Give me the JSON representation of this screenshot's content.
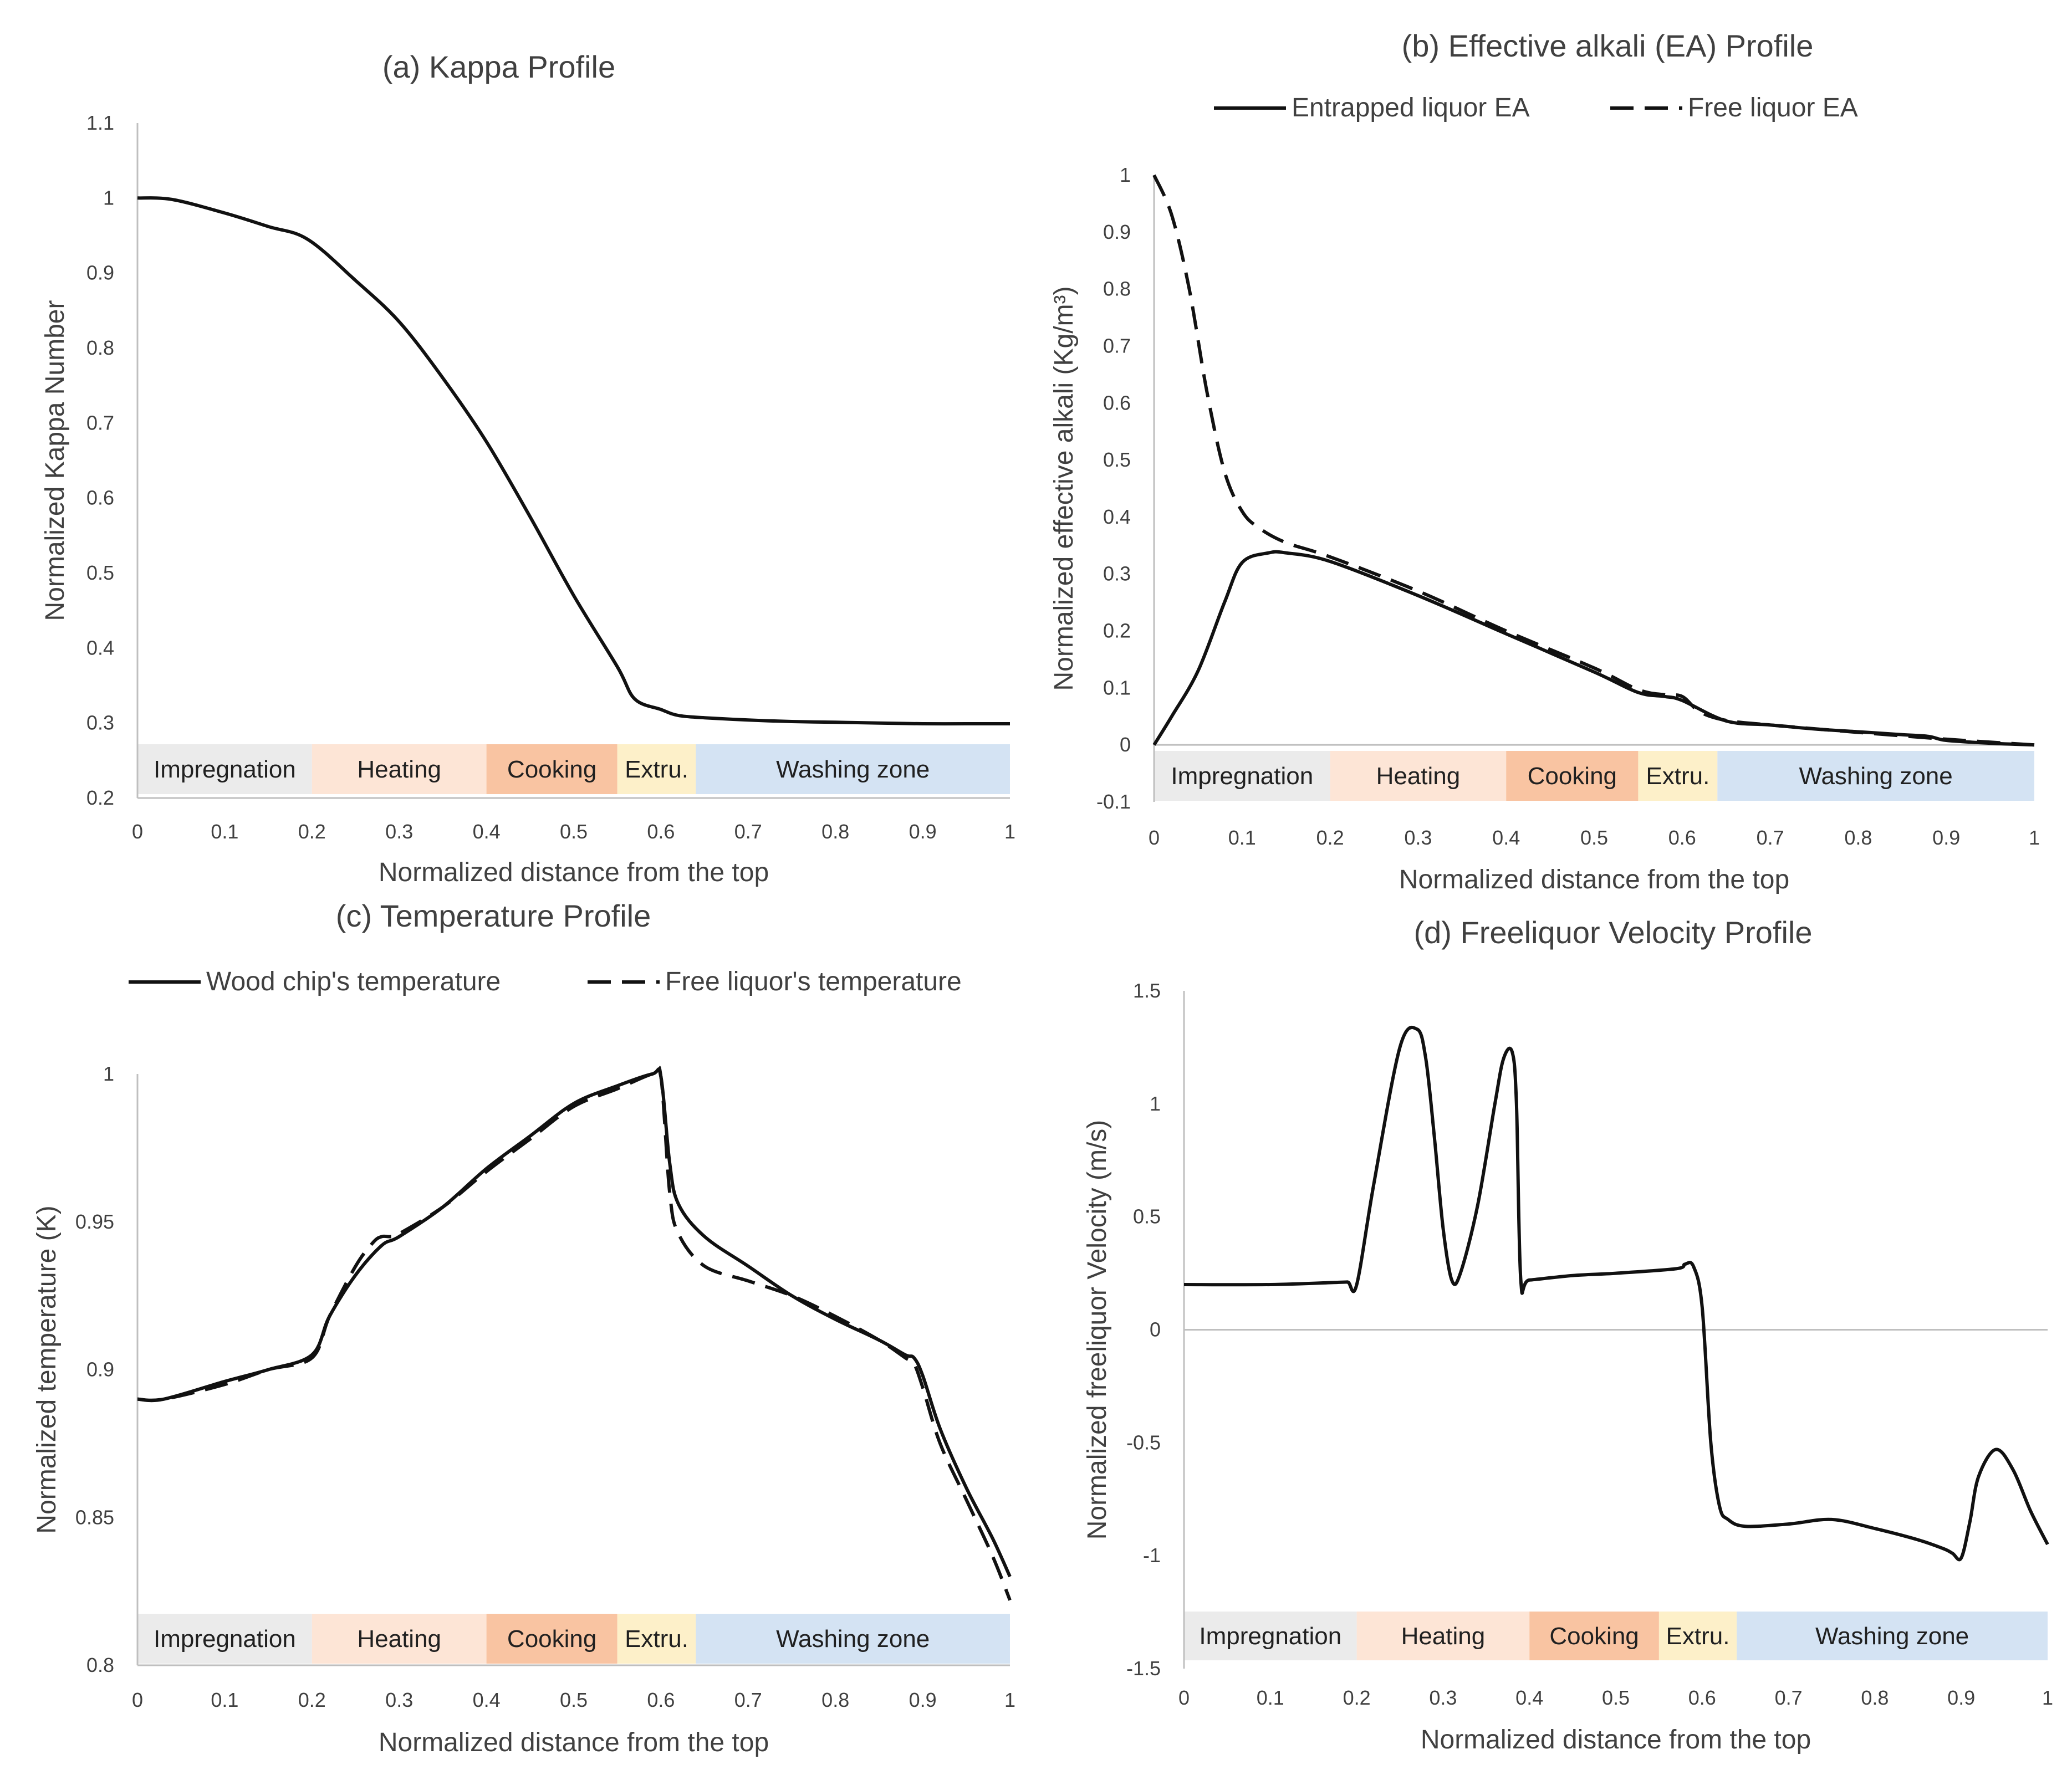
{
  "chart_data": [
    {
      "id": "a",
      "type": "line",
      "title": "(a) Kappa Profile",
      "xlabel": "Normalized distance from the top",
      "ylabel": "Normalized Kappa Number",
      "xlim": [
        0,
        1
      ],
      "ylim": [
        0.2,
        1.1
      ],
      "xticks": [
        "0",
        "0.1",
        "0.2",
        "0.3",
        "0.4",
        "0.5",
        "0.6",
        "0.7",
        "0.8",
        "0.9",
        "1"
      ],
      "yticks": [
        "0.2",
        "0.3",
        "0.4",
        "0.5",
        "0.6",
        "0.7",
        "0.8",
        "0.9",
        "1",
        "1.1"
      ],
      "legend": [],
      "series": [
        {
          "name": "Kappa",
          "style": "solid",
          "x": [
            0,
            0.04,
            0.1,
            0.15,
            0.195,
            0.25,
            0.3,
            0.35,
            0.4,
            0.45,
            0.5,
            0.55,
            0.57,
            0.6,
            0.62,
            0.65,
            0.7,
            0.75,
            0.8,
            0.85,
            0.9,
            0.95,
            1
          ],
          "y": [
            1,
            0.998,
            0.98,
            0.962,
            0.945,
            0.89,
            0.835,
            0.76,
            0.675,
            0.575,
            0.47,
            0.375,
            0.332,
            0.318,
            0.31,
            0.307,
            0.304,
            0.302,
            0.301,
            0.3,
            0.299,
            0.299,
            0.299
          ]
        }
      ],
      "zones": [
        {
          "label": "Impregnation",
          "from": 0,
          "to": 0.2,
          "color": "#ebebeb"
        },
        {
          "label": "Heating",
          "from": 0.2,
          "to": 0.4,
          "color": "#fde5d6"
        },
        {
          "label": "Cooking",
          "from": 0.4,
          "to": 0.55,
          "color": "#f9c4a2"
        },
        {
          "label": "Extru.",
          "from": 0.55,
          "to": 0.64,
          "color": "#fdf0c9"
        },
        {
          "label": "Washing zone",
          "from": 0.64,
          "to": 1,
          "color": "#d4e3f3"
        }
      ]
    },
    {
      "id": "b",
      "type": "line",
      "title": "Effective alkali (EA) Profile",
      "title_prefix": "(b)",
      "xlabel": "Normalized distance from the top",
      "ylabel": "Normalized effective alkali (Kg/m³)",
      "xlim": [
        0,
        1
      ],
      "ylim": [
        -0.1,
        1
      ],
      "xticks": [
        "0",
        "0.1",
        "0.2",
        "0.3",
        "0.4",
        "0.5",
        "0.6",
        "0.7",
        "0.8",
        "0.9",
        "1"
      ],
      "yticks": [
        "-0.1",
        "0",
        "0.1",
        "0.2",
        "0.3",
        "0.4",
        "0.5",
        "0.6",
        "0.7",
        "0.8",
        "0.9",
        "1"
      ],
      "legend": [
        "Entrapped liquor EA",
        "Free liquor EA"
      ],
      "series": [
        {
          "name": "Entrapped liquor EA",
          "style": "solid",
          "x": [
            0,
            0.02,
            0.05,
            0.08,
            0.1,
            0.13,
            0.15,
            0.2,
            0.3,
            0.4,
            0.5,
            0.55,
            0.58,
            0.6,
            0.65,
            0.7,
            0.75,
            0.8,
            0.85,
            0.88,
            0.9,
            0.95,
            1
          ],
          "y": [
            0,
            0.05,
            0.13,
            0.25,
            0.32,
            0.337,
            0.337,
            0.322,
            0.262,
            0.195,
            0.128,
            0.092,
            0.085,
            0.078,
            0.042,
            0.035,
            0.028,
            0.023,
            0.018,
            0.015,
            0.008,
            0.003,
            0
          ]
        },
        {
          "name": "Free liquor EA",
          "style": "dashed",
          "x": [
            0,
            0.02,
            0.04,
            0.06,
            0.08,
            0.1,
            0.12,
            0.15,
            0.2,
            0.3,
            0.4,
            0.5,
            0.55,
            0.58,
            0.6,
            0.62,
            0.65,
            0.7,
            0.8,
            0.9,
            1
          ],
          "y": [
            1,
            0.93,
            0.8,
            0.62,
            0.48,
            0.41,
            0.38,
            0.355,
            0.33,
            0.27,
            0.2,
            0.135,
            0.097,
            0.088,
            0.085,
            0.058,
            0.043,
            0.035,
            0.022,
            0.01,
            0
          ]
        }
      ],
      "zones": [
        {
          "label": "Impregnation",
          "from": 0,
          "to": 0.2,
          "color": "#ebebeb"
        },
        {
          "label": "Heating",
          "from": 0.2,
          "to": 0.4,
          "color": "#fde5d6"
        },
        {
          "label": "Cooking",
          "from": 0.4,
          "to": 0.55,
          "color": "#f9c4a2"
        },
        {
          "label": "Extru.",
          "from": 0.55,
          "to": 0.64,
          "color": "#fdf0c9"
        },
        {
          "label": "Washing zone",
          "from": 0.64,
          "to": 1,
          "color": "#d4e3f3"
        }
      ]
    },
    {
      "id": "c",
      "type": "line",
      "title": "Temperature Profile",
      "title_prefix": "(c)",
      "xlabel": "Normalized distance from the top",
      "ylabel": "Normalized temperature (K)",
      "xlim": [
        0,
        1
      ],
      "ylim": [
        0.8,
        1
      ],
      "xticks": [
        "0",
        "0.1",
        "0.2",
        "0.3",
        "0.4",
        "0.5",
        "0.6",
        "0.7",
        "0.8",
        "0.9",
        "1"
      ],
      "yticks": [
        "0.8",
        "0.85",
        "0.9",
        "0.95",
        "1"
      ],
      "legend": [
        "Wood chip's temperature",
        "Free liquor's temperature"
      ],
      "series": [
        {
          "name": "Wood chip's temperature",
          "style": "solid",
          "x": [
            0,
            0.03,
            0.1,
            0.15,
            0.2,
            0.22,
            0.25,
            0.28,
            0.3,
            0.35,
            0.4,
            0.45,
            0.5,
            0.55,
            0.59,
            0.6,
            0.61,
            0.62,
            0.65,
            0.7,
            0.75,
            0.8,
            0.85,
            0.88,
            0.89,
            0.9,
            0.92,
            0.95,
            0.98,
            1
          ],
          "y": [
            0.89,
            0.89,
            0.896,
            0.9,
            0.905,
            0.918,
            0.932,
            0.942,
            0.945,
            0.955,
            0.968,
            0.979,
            0.99,
            0.996,
            1,
            0.999,
            0.97,
            0.956,
            0.945,
            0.935,
            0.925,
            0.917,
            0.91,
            0.905,
            0.904,
            0.898,
            0.88,
            0.86,
            0.843,
            0.83
          ]
        },
        {
          "name": "Free liquor's temperature",
          "style": "dashed",
          "x": [
            0,
            0.03,
            0.1,
            0.15,
            0.2,
            0.22,
            0.25,
            0.27,
            0.28,
            0.29,
            0.3,
            0.35,
            0.4,
            0.45,
            0.5,
            0.55,
            0.59,
            0.6,
            0.61,
            0.62,
            0.65,
            0.7,
            0.75,
            0.8,
            0.85,
            0.88,
            0.89,
            0.9,
            0.92,
            0.95,
            0.98,
            1
          ],
          "y": [
            0.89,
            0.89,
            0.895,
            0.9,
            0.904,
            0.918,
            0.935,
            0.943,
            0.945,
            0.945,
            0.946,
            0.955,
            0.967,
            0.978,
            0.989,
            0.995,
            1,
            0.999,
            0.96,
            0.946,
            0.935,
            0.93,
            0.925,
            0.918,
            0.91,
            0.904,
            0.902,
            0.894,
            0.875,
            0.856,
            0.837,
            0.822
          ]
        }
      ],
      "zones": [
        {
          "label": "Impregnation",
          "from": 0,
          "to": 0.2,
          "color": "#ebebeb"
        },
        {
          "label": "Heating",
          "from": 0.2,
          "to": 0.4,
          "color": "#fde5d6"
        },
        {
          "label": "Cooking",
          "from": 0.4,
          "to": 0.55,
          "color": "#f9c4a2"
        },
        {
          "label": "Extru.",
          "from": 0.55,
          "to": 0.64,
          "color": "#fdf0c9"
        },
        {
          "label": "Washing zone",
          "from": 0.64,
          "to": 1,
          "color": "#d4e3f3"
        }
      ]
    },
    {
      "id": "d",
      "type": "line",
      "title": "Freeliquor Velocity Profile",
      "title_prefix": "(d)",
      "xlabel": "Normalized distance from the top",
      "ylabel": "Normalized freeliquor Velocity (m/s)",
      "xlim": [
        0,
        1
      ],
      "ylim": [
        -1.5,
        1.5
      ],
      "xticks": [
        "0",
        "0.1",
        "0.2",
        "0.3",
        "0.4",
        "0.5",
        "0.6",
        "0.7",
        "0.8",
        "0.9",
        "1"
      ],
      "yticks": [
        "-1.5",
        "-1",
        "-0.5",
        "0",
        "0.5",
        "1",
        "1.5"
      ],
      "legend": [],
      "series": [
        {
          "name": "Freeliquor velocity",
          "style": "solid",
          "x": [
            0,
            0.1,
            0.18,
            0.19,
            0.2,
            0.22,
            0.25,
            0.27,
            0.28,
            0.29,
            0.3,
            0.31,
            0.32,
            0.34,
            0.36,
            0.37,
            0.38,
            0.385,
            0.39,
            0.4,
            0.45,
            0.5,
            0.57,
            0.58,
            0.59,
            0.6,
            0.61,
            0.62,
            0.63,
            0.65,
            0.7,
            0.75,
            0.8,
            0.85,
            0.88,
            0.89,
            0.9,
            0.91,
            0.92,
            0.94,
            0.96,
            0.98,
            1
          ],
          "y": [
            0.2,
            0.2,
            0.21,
            0.21,
            0.2,
            0.65,
            1.25,
            1.33,
            1.2,
            0.85,
            0.45,
            0.22,
            0.25,
            0.55,
            1.0,
            1.2,
            1.23,
            1.0,
            0.22,
            0.22,
            0.24,
            0.25,
            0.27,
            0.29,
            0.28,
            0.1,
            -0.5,
            -0.78,
            -0.84,
            -0.87,
            -0.86,
            -0.84,
            -0.88,
            -0.93,
            -0.97,
            -0.99,
            -1.01,
            -0.85,
            -0.65,
            -0.53,
            -0.62,
            -0.8,
            -0.95
          ]
        }
      ],
      "zones": [
        {
          "label": "Impregnation",
          "from": 0,
          "to": 0.2,
          "color": "#ebebeb"
        },
        {
          "label": "Heating",
          "from": 0.2,
          "to": 0.4,
          "color": "#fde5d6"
        },
        {
          "label": "Cooking",
          "from": 0.4,
          "to": 0.55,
          "color": "#f9c4a2"
        },
        {
          "label": "Extru.",
          "from": 0.55,
          "to": 0.64,
          "color": "#fdf0c9"
        },
        {
          "label": "Washing zone",
          "from": 0.64,
          "to": 1,
          "color": "#d4e3f3"
        }
      ]
    }
  ]
}
